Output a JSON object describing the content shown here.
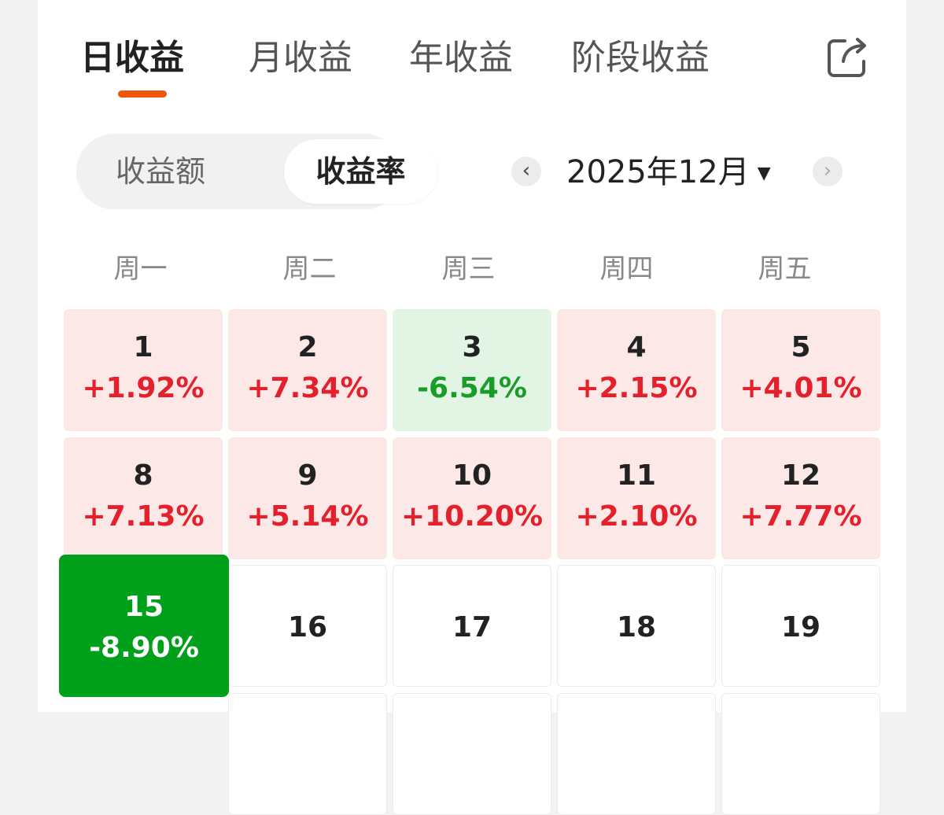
{
  "tabs": [
    "日收益",
    "月收益",
    "年收益",
    "阶段收益"
  ],
  "segment": {
    "amount": "收益额",
    "rate": "收益率"
  },
  "month_label": "2025年12月",
  "nav": {
    "prev": "‹",
    "next": "›"
  },
  "weekdays": [
    "周一",
    "周二",
    "周三",
    "周四",
    "周五"
  ],
  "days": [
    {
      "day": "1",
      "pct": "+1.92%"
    },
    {
      "day": "2",
      "pct": "+7.34%"
    },
    {
      "day": "3",
      "pct": "-6.54%"
    },
    {
      "day": "4",
      "pct": "+2.15%"
    },
    {
      "day": "5",
      "pct": "+4.01%"
    },
    {
      "day": "8",
      "pct": "+7.13%"
    },
    {
      "day": "9",
      "pct": "+5.14%"
    },
    {
      "day": "10",
      "pct": "+10.20%"
    },
    {
      "day": "11",
      "pct": "+2.10%"
    },
    {
      "day": "12",
      "pct": "+7.77%"
    },
    {
      "day": "15",
      "pct": "-8.90%"
    },
    {
      "day": "16"
    },
    {
      "day": "17"
    },
    {
      "day": "18"
    },
    {
      "day": "19"
    }
  ],
  "colors": {
    "accent": "#f0560b",
    "up": "#e3202b",
    "down": "#1a9c2a",
    "selected": "#00a01a"
  }
}
